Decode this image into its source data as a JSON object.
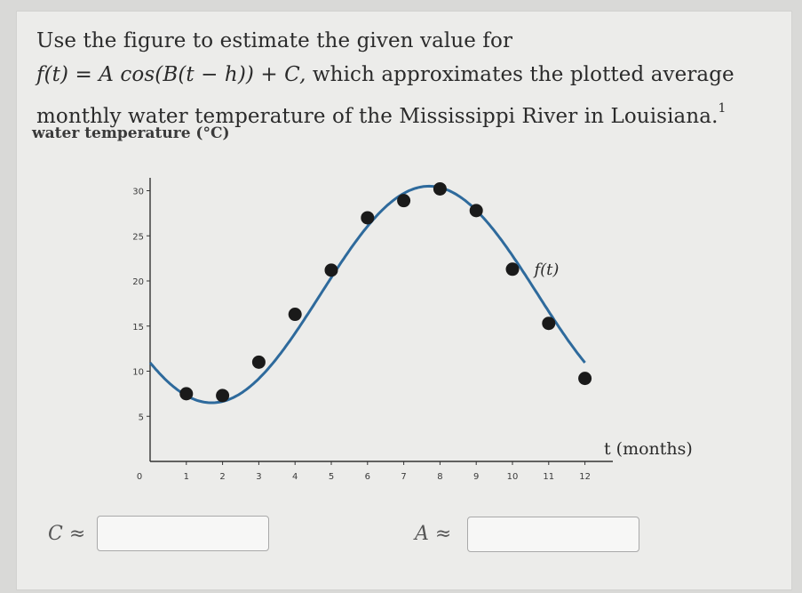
{
  "question": {
    "line1": "Use the figure to estimate the given value for",
    "formula": "f(t) = A cos(B(t − h)) + C,",
    "line2_rest": " which approximates the plotted average",
    "line3": "monthly water temperature of the Mississippi River in Louisiana.",
    "footnote": "1"
  },
  "answers": {
    "c_label": "C ≈",
    "c_value": "",
    "a_label": "A ≈",
    "a_value": ""
  },
  "chart_data": {
    "type": "scatter",
    "ylabel": "water temperature (°C)",
    "xlabel": "t (months)",
    "xlim": [
      0,
      12.5
    ],
    "ylim": [
      0,
      31
    ],
    "xticks": [
      "0",
      "1",
      "2",
      "3",
      "4",
      "5",
      "6",
      "7",
      "8",
      "9",
      "10",
      "11",
      "12"
    ],
    "yticks": [
      "5",
      "10",
      "15",
      "20",
      "25",
      "30"
    ],
    "grid": false,
    "series": [
      {
        "kind": "points",
        "x": [
          1,
          2,
          3,
          4,
          5,
          6,
          7,
          8,
          9,
          10,
          11,
          12
        ],
        "y": [
          7.5,
          7.3,
          11,
          16.3,
          21.2,
          27,
          28.9,
          30.2,
          27.8,
          21.3,
          15.3,
          9.2
        ],
        "color": "#1a1a1a"
      },
      {
        "name": "f(t)",
        "kind": "curve",
        "model": {
          "A": 12,
          "B": 0.5236,
          "h": 7.7,
          "C": 18.5
        },
        "color": "#2e6a9c"
      }
    ],
    "curve_label": "f(t)"
  }
}
